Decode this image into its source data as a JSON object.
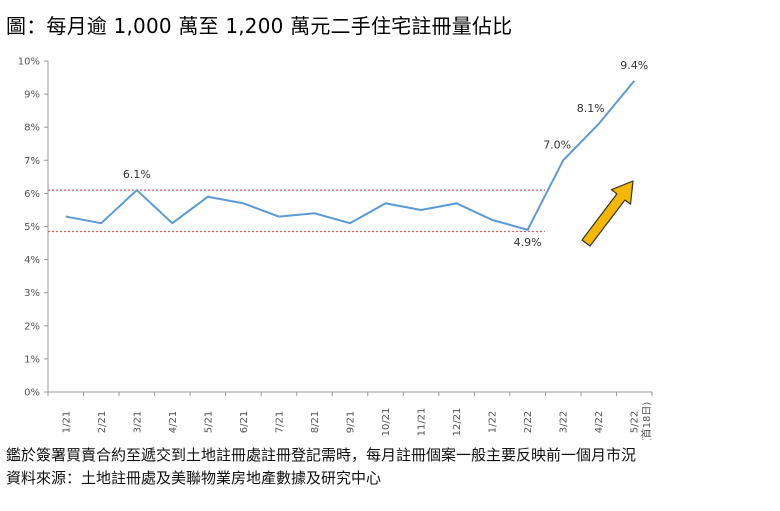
{
  "title": "圖：每月逾 1,000 萬至 1,200 萬元二手住宅註冊量佔比",
  "notes": [
    "鑑於簽署買賣合約至遞交到土地註冊處註冊登記需時，每月註冊個案一般主要反映前一個月市況",
    "資料來源：土地註冊處及美聯物業房地產數據及研究中心"
  ],
  "chart_data": {
    "type": "line",
    "title": "",
    "xlabel": "",
    "ylabel": "",
    "categories": [
      "1/21",
      "2/21",
      "3/21",
      "4/21",
      "5/21",
      "6/21",
      "7/21",
      "8/21",
      "9/21",
      "10/21",
      "11/21",
      "12/21",
      "1/22",
      "2/22",
      "3/22",
      "4/22",
      "5/22"
    ],
    "category_note": {
      "5/22": "(首18日)"
    },
    "series": [
      {
        "values": [
          5.3,
          5.1,
          6.1,
          5.1,
          5.9,
          5.7,
          5.3,
          5.4,
          5.1,
          5.7,
          5.5,
          5.7,
          5.2,
          4.9,
          7.0,
          8.1,
          9.4
        ]
      }
    ],
    "ylim": [
      0,
      10
    ],
    "yticks": [
      0,
      1,
      2,
      3,
      4,
      5,
      6,
      7,
      8,
      9,
      10
    ],
    "ytick_labels": [
      "0%",
      "1%",
      "2%",
      "3%",
      "4%",
      "5%",
      "6%",
      "7%",
      "8%",
      "9%",
      "10%"
    ],
    "data_labels": [
      {
        "index": 2,
        "text": "6.1%"
      },
      {
        "index": 13,
        "text": "4.9%"
      },
      {
        "index": 14,
        "text": "7.0%"
      },
      {
        "index": 15,
        "text": "8.1%"
      },
      {
        "index": 16,
        "text": "9.4%"
      }
    ],
    "reference_lines": [
      6.1,
      4.85
    ],
    "arrow": "rising trend arrow near right end",
    "grid": false,
    "colors": {
      "line": "#5b9bd5",
      "reference": "#e06060",
      "arrow_fill": "#f5b800",
      "arrow_stroke": "#333333"
    }
  }
}
